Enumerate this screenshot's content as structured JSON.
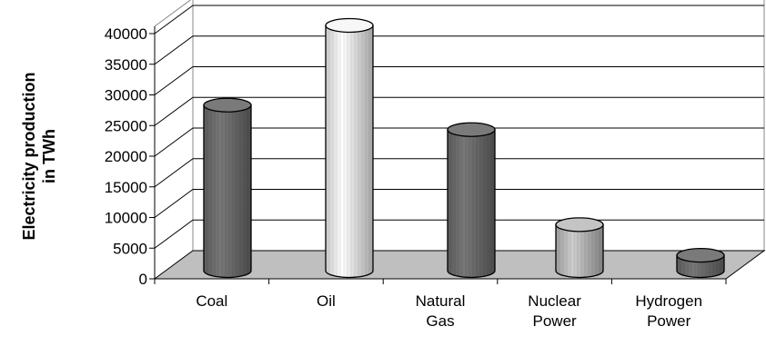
{
  "chart_data": {
    "type": "bar",
    "style": "3d-cylinder",
    "title": "",
    "xlabel": "",
    "ylabel_lines": [
      "Electricity production",
      "in TWh"
    ],
    "categories": [
      [
        "Coal"
      ],
      [
        "Oil"
      ],
      [
        "Natural",
        "Gas"
      ],
      [
        "Nuclear",
        "Power"
      ],
      [
        "Hydrogen",
        "Power"
      ]
    ],
    "values": [
      27000,
      40000,
      23000,
      7500,
      2500
    ],
    "ylim": [
      0,
      40000
    ],
    "yticks": [
      0,
      5000,
      10000,
      15000,
      20000,
      25000,
      30000,
      35000,
      40000
    ],
    "grid": true,
    "legend": "none",
    "colors": {
      "bars": [
        "#6b6b6b",
        "#ececec",
        "#6b6b6b",
        "#b8b8b8",
        "#6b6b6b"
      ],
      "bar_tops": [
        "#7a7a7a",
        "#f7f7f7",
        "#7a7a7a",
        "#c4c4c4",
        "#7a7a7a"
      ],
      "floor": "#bfbfbf",
      "grid": "#000000"
    }
  }
}
